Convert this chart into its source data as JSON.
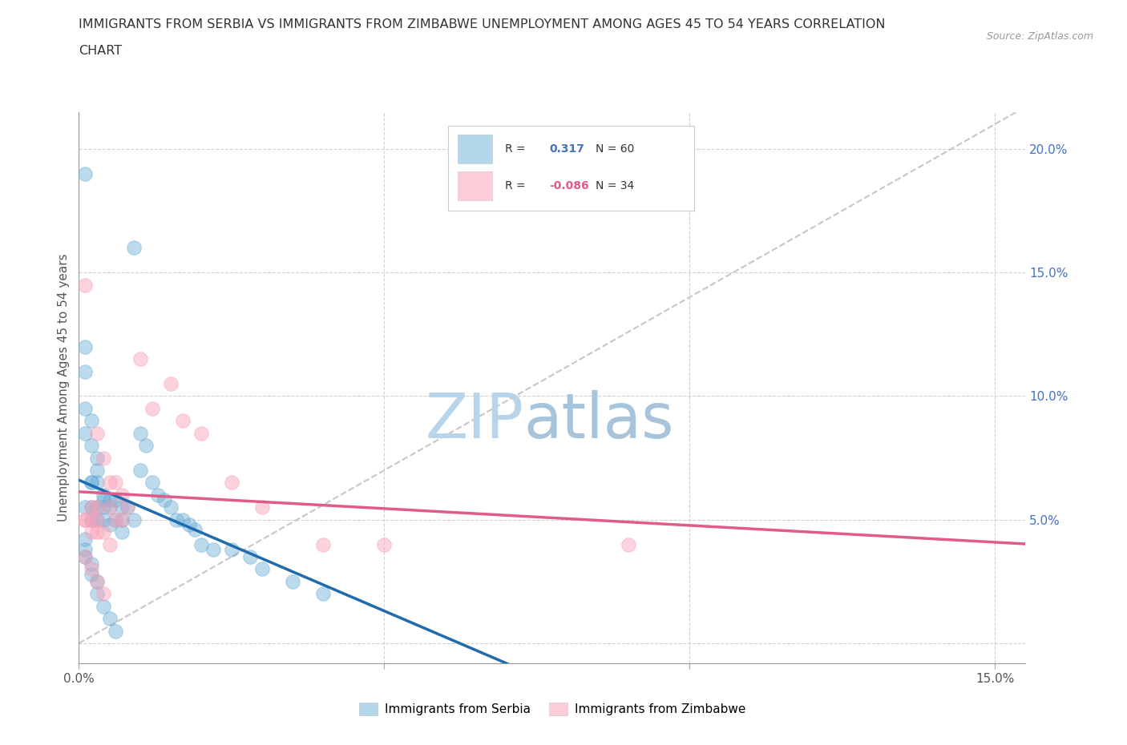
{
  "title_line1": "IMMIGRANTS FROM SERBIA VS IMMIGRANTS FROM ZIMBABWE UNEMPLOYMENT AMONG AGES 45 TO 54 YEARS CORRELATION",
  "title_line2": "CHART",
  "source_text": "Source: ZipAtlas.com",
  "ylabel": "Unemployment Among Ages 45 to 54 years",
  "xlim": [
    0.0,
    0.155
  ],
  "ylim": [
    -0.008,
    0.215
  ],
  "xticks": [
    0.0,
    0.05,
    0.1,
    0.15
  ],
  "yticks": [
    0.05,
    0.1,
    0.15,
    0.2
  ],
  "ytick_labels_right": [
    "5.0%",
    "10.0%",
    "15.0%",
    "20.0%"
  ],
  "serbia_color": "#6baed6",
  "serbia_line_color": "#1f6bb0",
  "zimbabwe_color": "#fa9fb5",
  "zimbabwe_line_color": "#e05a8a",
  "diagonal_color": "#c0c0c0",
  "serbia_R": 0.317,
  "serbia_N": 60,
  "zimbabwe_R": -0.086,
  "zimbabwe_N": 34,
  "serbia_scatter_x": [
    0.001,
    0.009,
    0.001,
    0.001,
    0.001,
    0.001,
    0.001,
    0.002,
    0.002,
    0.002,
    0.002,
    0.002,
    0.002,
    0.003,
    0.003,
    0.003,
    0.003,
    0.003,
    0.004,
    0.004,
    0.004,
    0.004,
    0.005,
    0.005,
    0.005,
    0.006,
    0.006,
    0.007,
    0.007,
    0.007,
    0.008,
    0.009,
    0.01,
    0.01,
    0.011,
    0.012,
    0.013,
    0.014,
    0.015,
    0.016,
    0.017,
    0.018,
    0.019,
    0.02,
    0.022,
    0.025,
    0.028,
    0.03,
    0.035,
    0.04,
    0.001,
    0.001,
    0.001,
    0.002,
    0.002,
    0.003,
    0.003,
    0.004,
    0.005,
    0.006
  ],
  "serbia_scatter_y": [
    0.19,
    0.16,
    0.12,
    0.11,
    0.095,
    0.085,
    0.055,
    0.09,
    0.08,
    0.065,
    0.065,
    0.055,
    0.05,
    0.075,
    0.07,
    0.065,
    0.055,
    0.05,
    0.06,
    0.058,
    0.055,
    0.05,
    0.058,
    0.055,
    0.048,
    0.058,
    0.05,
    0.055,
    0.05,
    0.045,
    0.055,
    0.05,
    0.07,
    0.085,
    0.08,
    0.065,
    0.06,
    0.058,
    0.055,
    0.05,
    0.05,
    0.048,
    0.046,
    0.04,
    0.038,
    0.038,
    0.035,
    0.03,
    0.025,
    0.02,
    0.042,
    0.038,
    0.035,
    0.032,
    0.028,
    0.025,
    0.02,
    0.015,
    0.01,
    0.005
  ],
  "zimbabwe_scatter_x": [
    0.001,
    0.001,
    0.001,
    0.002,
    0.002,
    0.002,
    0.003,
    0.003,
    0.003,
    0.003,
    0.004,
    0.004,
    0.005,
    0.005,
    0.005,
    0.006,
    0.006,
    0.007,
    0.007,
    0.008,
    0.01,
    0.012,
    0.015,
    0.017,
    0.02,
    0.025,
    0.03,
    0.04,
    0.05,
    0.09,
    0.001,
    0.002,
    0.003,
    0.004
  ],
  "zimbabwe_scatter_y": [
    0.145,
    0.05,
    0.05,
    0.055,
    0.05,
    0.045,
    0.085,
    0.055,
    0.05,
    0.045,
    0.075,
    0.045,
    0.065,
    0.055,
    0.04,
    0.065,
    0.05,
    0.06,
    0.05,
    0.055,
    0.115,
    0.095,
    0.105,
    0.09,
    0.085,
    0.065,
    0.055,
    0.04,
    0.04,
    0.04,
    0.035,
    0.03,
    0.025,
    0.02
  ],
  "watermark_top": "ZIP",
  "watermark_bottom": "atlas",
  "watermark_color": "#c8dff0",
  "background_color": "#ffffff",
  "grid_color": "#cccccc"
}
